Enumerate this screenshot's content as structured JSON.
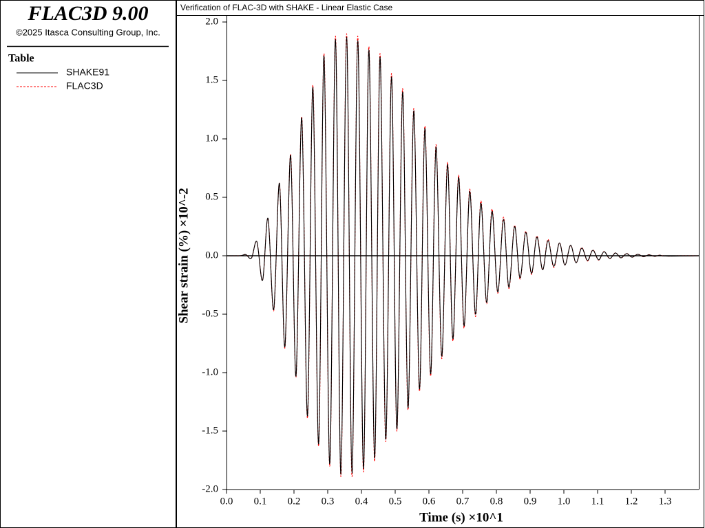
{
  "header": {
    "app_title": "FLAC3D 9.00",
    "copyright": "©2025 Itasca Consulting Group, Inc."
  },
  "chart_data": {
    "type": "line",
    "title": "Verification of FLAC-3D with SHAKE - Linear Elastic Case",
    "legend_title": "Table",
    "x_label": "Time (s) ×10^1",
    "y_label": "Shear strain (%) ×10^-2",
    "x": [
      0,
      0.04,
      0.057,
      0.074,
      0.09,
      0.107,
      0.123,
      0.14,
      0.157,
      0.173,
      0.19,
      0.206,
      0.223,
      0.24,
      0.256,
      0.273,
      0.289,
      0.306,
      0.323,
      0.339,
      0.356,
      0.372,
      0.389,
      0.406,
      0.422,
      0.439,
      0.455,
      0.472,
      0.489,
      0.505,
      0.522,
      0.538,
      0.555,
      0.572,
      0.588,
      0.605,
      0.621,
      0.638,
      0.655,
      0.671,
      0.688,
      0.704,
      0.721,
      0.738,
      0.754,
      0.771,
      0.787,
      0.804,
      0.821,
      0.837,
      0.854,
      0.87,
      0.887,
      0.904,
      0.92,
      0.937,
      0.953,
      0.97,
      0.987,
      1.003,
      1.02,
      1.036,
      1.053,
      1.07,
      1.086,
      1.103,
      1.119,
      1.136,
      1.153,
      1.169,
      1.186,
      1.202,
      1.219,
      1.236,
      1.252,
      1.269,
      1.285,
      1.302,
      1.4
    ],
    "series": [
      {
        "name": "SHAKE91",
        "color": "#000000",
        "line_style": "solid",
        "values": [
          0,
          0,
          0.01,
          -0.02,
          0.12,
          -0.21,
          0.32,
          -0.46,
          0.62,
          -0.78,
          0.86,
          -1.03,
          1.18,
          -1.37,
          1.44,
          -1.61,
          1.71,
          -1.78,
          1.85,
          -1.87,
          1.87,
          -1.86,
          1.84,
          -1.82,
          1.76,
          -1.73,
          1.7,
          -1.57,
          1.53,
          -1.48,
          1.4,
          -1.3,
          1.24,
          -1.14,
          1.09,
          -1.01,
          0.93,
          -0.86,
          0.78,
          -0.71,
          0.67,
          -0.6,
          0.55,
          -0.5,
          0.45,
          -0.4,
          0.38,
          -0.31,
          0.31,
          -0.27,
          0.25,
          -0.19,
          0.2,
          -0.15,
          0.16,
          -0.12,
          0.13,
          -0.09,
          0.11,
          -0.08,
          0.09,
          -0.06,
          0.065,
          -0.04,
          0.047,
          -0.035,
          0.035,
          -0.024,
          0.024,
          -0.018,
          0.018,
          -0.012,
          0.012,
          -0.008,
          0.008,
          -0.005,
          0.005,
          -0.003,
          0
        ]
      },
      {
        "name": "FLAC3D",
        "color": "#ff0000",
        "line_style": "dashed",
        "values": [
          0,
          0,
          0.01,
          -0.02,
          0.12,
          -0.21,
          0.32,
          -0.47,
          0.62,
          -0.79,
          0.87,
          -1.04,
          1.19,
          -1.39,
          1.46,
          -1.63,
          1.73,
          -1.8,
          1.88,
          -1.89,
          1.9,
          -1.89,
          1.88,
          -1.85,
          1.79,
          -1.76,
          1.73,
          -1.59,
          1.56,
          -1.5,
          1.43,
          -1.32,
          1.26,
          -1.16,
          1.11,
          -1.03,
          0.95,
          -0.88,
          0.8,
          -0.73,
          0.69,
          -0.62,
          0.57,
          -0.52,
          0.47,
          -0.41,
          0.4,
          -0.32,
          0.33,
          -0.28,
          0.26,
          -0.2,
          0.21,
          -0.16,
          0.17,
          -0.12,
          0.14,
          -0.1,
          0.11,
          -0.08,
          0.09,
          -0.06,
          0.07,
          -0.045,
          0.05,
          -0.037,
          0.036,
          -0.025,
          0.025,
          -0.019,
          0.019,
          -0.013,
          0.013,
          -0.009,
          0.009,
          -0.006,
          0.006,
          -0.003,
          0
        ]
      }
    ],
    "xlim": [
      0,
      1.4
    ],
    "xticks": [
      {
        "value": 0,
        "label": "0.0"
      },
      0.1,
      0.2,
      0.3,
      0.4,
      0.5,
      0.6,
      0.7,
      0.8,
      0.9,
      {
        "value": 1,
        "label": "1.0"
      },
      1.1,
      1.2,
      1.3
    ],
    "ylim": [
      -2,
      2
    ],
    "yticks": [
      {
        "value": 2,
        "label": "2.0"
      },
      1.5,
      {
        "value": 1,
        "label": "1.0"
      },
      0.5,
      {
        "value": 0,
        "label": "0.0"
      },
      -0.5,
      {
        "value": -1,
        "label": "-1.0"
      },
      -1.5,
      {
        "value": -2,
        "label": "-2.0"
      }
    ],
    "grid": false
  }
}
